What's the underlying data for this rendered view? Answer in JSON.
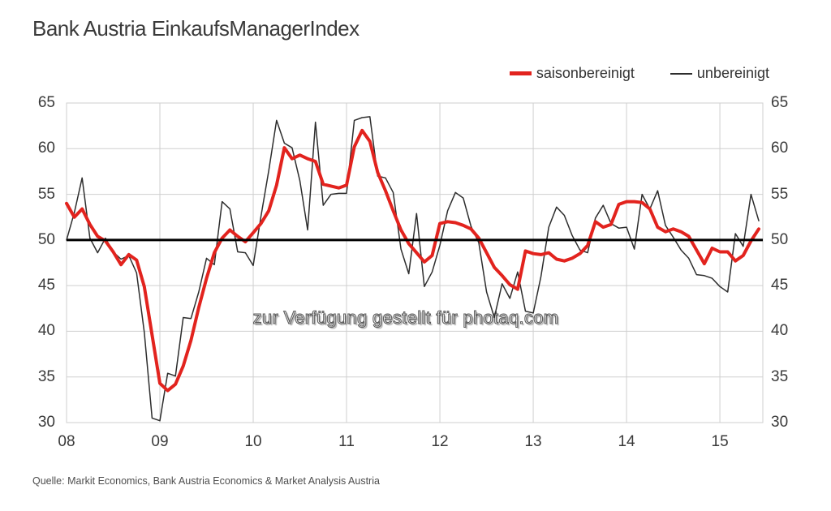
{
  "title": "Bank Austria EinkaufsManagerIndex",
  "watermark": "zur Verfügung gestellt für photaq.com",
  "source": "Quelle: Markit Economics, Bank Austria Economics & Market Analysis Austria",
  "legend": {
    "items": [
      {
        "label": "saisonbereinigt",
        "color": "#e2231e",
        "thickness": 5
      },
      {
        "label": "unbereinigt",
        "color": "#2d2d2d",
        "thickness": 2
      }
    ]
  },
  "colors": {
    "grid": "#cfcfcf",
    "reference_line": "#000000",
    "text": "#3a3a3a"
  },
  "chart_data": {
    "type": "line",
    "title": "Bank Austria EinkaufsManagerIndex",
    "x_unit": "month",
    "x_start": "2008-01",
    "x_end": "2015-06",
    "x_tick_labels": [
      "08",
      "09",
      "10",
      "11",
      "12",
      "13",
      "14",
      "15"
    ],
    "months_per_tick": 12,
    "ylim": [
      30,
      65
    ],
    "y_ticks": [
      30,
      35,
      40,
      45,
      50,
      55,
      60,
      65
    ],
    "grid": true,
    "legend_position": "top-right",
    "reference_line": {
      "value": 50,
      "color": "#000000",
      "width": 3
    },
    "series": [
      {
        "name": "saisonbereinigt",
        "color": "#e2231e",
        "stroke_width": 4,
        "values": [
          54.0,
          52.5,
          53.4,
          51.7,
          50.4,
          49.9,
          48.7,
          47.3,
          48.4,
          47.8,
          44.9,
          39.6,
          34.3,
          33.5,
          34.2,
          36.2,
          39.0,
          42.6,
          45.8,
          48.6,
          50.2,
          51.1,
          50.4,
          49.8,
          50.8,
          51.8,
          53.2,
          56.0,
          60.1,
          58.9,
          59.3,
          58.9,
          58.6,
          56.1,
          55.9,
          55.7,
          56.0,
          60.2,
          62.0,
          60.8,
          57.4,
          55.4,
          53.2,
          51.1,
          49.6,
          48.6,
          47.6,
          48.3,
          51.8,
          52.0,
          51.9,
          51.6,
          51.2,
          50.2,
          48.6,
          47.0,
          46.1,
          45.1,
          44.6,
          48.8,
          48.5,
          48.4,
          48.6,
          47.9,
          47.7,
          48.0,
          48.5,
          49.4,
          52.0,
          51.4,
          51.7,
          53.9,
          54.2,
          54.2,
          54.1,
          53.4,
          51.4,
          50.9,
          51.2,
          50.9,
          50.4,
          48.9,
          47.4,
          49.1,
          48.7,
          48.7,
          47.7,
          48.3,
          49.9,
          51.2
        ]
      },
      {
        "name": "unbereinigt",
        "color": "#2d2d2d",
        "stroke_width": 1.5,
        "values": [
          50.0,
          53.0,
          56.8,
          50.2,
          48.6,
          50.2,
          48.7,
          47.9,
          48.3,
          46.4,
          39.9,
          30.5,
          30.2,
          35.4,
          35.1,
          41.5,
          41.4,
          44.3,
          48.0,
          47.3,
          54.2,
          53.4,
          48.7,
          48.6,
          47.2,
          52.6,
          57.6,
          63.1,
          60.6,
          60.1,
          56.5,
          51.1,
          62.9,
          53.8,
          55.0,
          55.1,
          55.1,
          63.1,
          63.4,
          63.5,
          57.0,
          56.8,
          55.2,
          49.0,
          46.3,
          52.9,
          44.9,
          46.5,
          49.4,
          53.2,
          55.2,
          54.6,
          51.5,
          49.7,
          44.3,
          41.5,
          45.2,
          43.6,
          46.5,
          42.2,
          42.0,
          46.0,
          51.4,
          53.6,
          52.7,
          50.5,
          48.9,
          48.6,
          52.4,
          53.8,
          51.8,
          51.3,
          51.4,
          49.0,
          55.0,
          53.4,
          55.4,
          51.6,
          50.3,
          48.9,
          48.0,
          46.2,
          46.1,
          45.8,
          44.9,
          44.3,
          50.7,
          49.3,
          55.0,
          52.1
        ]
      }
    ]
  }
}
